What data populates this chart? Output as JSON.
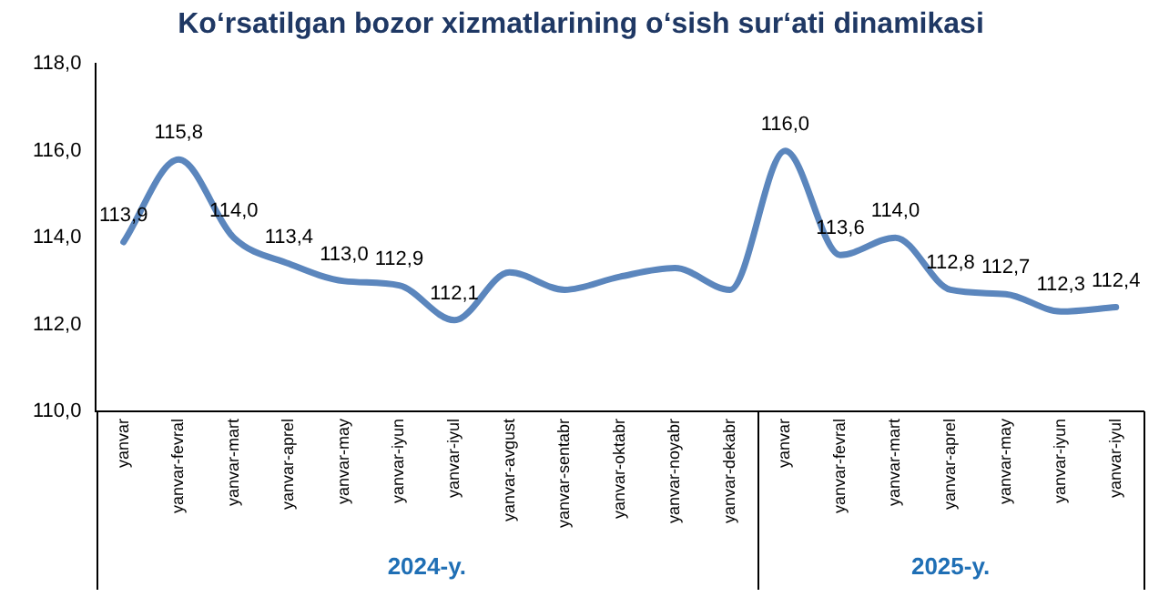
{
  "chart_data": {
    "type": "line",
    "title": "Ko‘rsatilgan bozor xizmatlarining o‘sish sur‘ati dinamikasi",
    "categories": [
      "yanvar",
      "yanvar-fevral",
      "yanvar-mart",
      "yanvar-aprel",
      "yanvar-may",
      "yanvar-iyun",
      "yanvar-iyul",
      "yanvar-avgust",
      "yanvar-sentabr",
      "yanvar-oktabr",
      "yanvar-noyabr",
      "yanvar-dekabr",
      "yanvar",
      "yanvar-fevral",
      "yanvar-mart",
      "yanvar-aprel",
      "yanvar-may",
      "yanvar-iyun",
      "yanvar-iyul"
    ],
    "series": [
      {
        "color": "#5b86bd",
        "values": [
          113.9,
          115.8,
          114.0,
          113.4,
          113.0,
          112.9,
          112.1,
          113.2,
          112.8,
          113.1,
          113.3,
          112.8,
          116.0,
          113.6,
          114.0,
          112.8,
          112.7,
          112.3,
          112.4
        ],
        "value_labels": [
          "113,9",
          "115,8",
          "114,0",
          "113,4",
          "113,0",
          "112,9",
          "112,1",
          null,
          null,
          null,
          null,
          null,
          "116,0",
          "113,6",
          "114,0",
          "112,8",
          "112,7",
          "112,3",
          "112,4"
        ]
      }
    ],
    "ylim": [
      110,
      118
    ],
    "yticks": [
      {
        "value": 110,
        "label": "110,0"
      },
      {
        "value": 112,
        "label": "112,0"
      },
      {
        "value": 114,
        "label": "114,0"
      },
      {
        "value": 116,
        "label": "116,0"
      },
      {
        "value": 118,
        "label": "118,0"
      }
    ],
    "annotations": [
      "2024-y.",
      "2025-y."
    ],
    "grid": false,
    "legend": false,
    "marker": "none",
    "line_style": "solid"
  }
}
